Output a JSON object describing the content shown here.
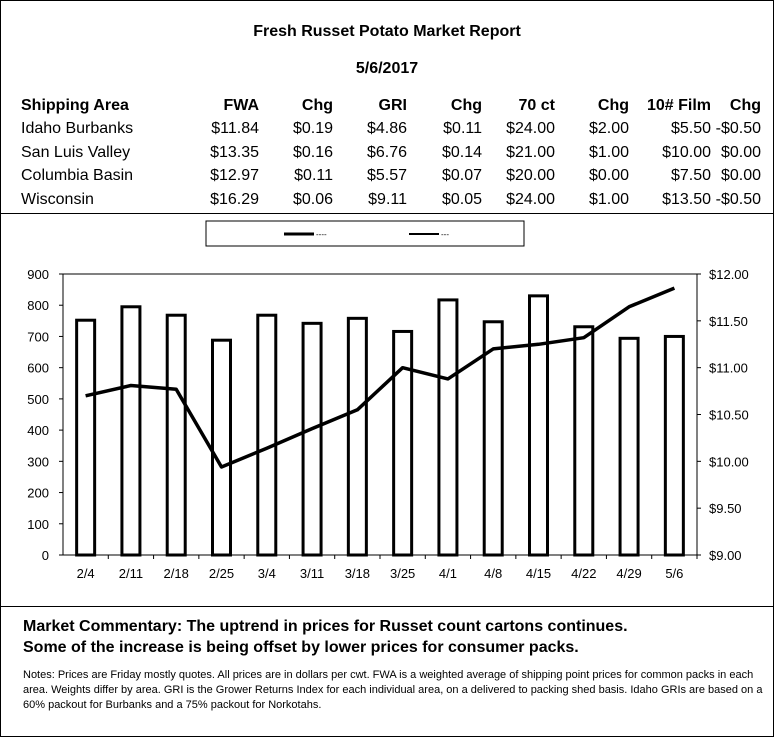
{
  "report": {
    "title": "Fresh Russet Potato Market Report",
    "date": "5/6/2017"
  },
  "table": {
    "headers": [
      "Shipping Area",
      "FWA",
      "Chg",
      "GRI",
      "Chg",
      "70 ct",
      "Chg",
      "10# Film",
      "Chg"
    ],
    "rows": [
      [
        "Idaho Burbanks",
        "$11.84",
        "$0.19",
        "$4.86",
        "$0.11",
        "$24.00",
        "$2.00",
        "$5.50",
        "-$0.50"
      ],
      [
        "San Luis Valley",
        "$13.35",
        "$0.16",
        "$6.76",
        "$0.14",
        "$21.00",
        "$1.00",
        "$10.00",
        "$0.00"
      ],
      [
        "Columbia Basin",
        "$12.97",
        "$0.11",
        "$5.57",
        "$0.07",
        "$20.00",
        "$0.00",
        "$7.50",
        "$0.00"
      ],
      [
        "Wisconsin",
        "$16.29",
        "$0.06",
        "$9.11",
        "$0.05",
        "$24.00",
        "$1.00",
        "$13.50",
        "-$0.50"
      ]
    ]
  },
  "chart_data": {
    "type": "bar",
    "categories": [
      "2/4",
      "2/11",
      "2/18",
      "2/25",
      "3/4",
      "3/11",
      "3/18",
      "3/25",
      "4/1",
      "4/8",
      "4/15",
      "4/22",
      "4/29",
      "5/6"
    ],
    "series": [
      {
        "type": "bar",
        "axis": "left",
        "values": [
          752,
          795,
          768,
          688,
          768,
          742,
          758,
          716,
          817,
          747,
          830,
          731,
          694,
          700
        ]
      },
      {
        "type": "line",
        "axis": "right",
        "values": [
          10.7,
          10.81,
          10.77,
          9.94,
          10.14,
          10.35,
          10.55,
          11.0,
          10.88,
          11.2,
          11.25,
          11.32,
          11.65,
          11.85
        ]
      }
    ],
    "legend": {
      "placement": "top",
      "entries": [
        "----",
        "---"
      ]
    },
    "y_left": {
      "lim": [
        0,
        900
      ],
      "ticks": [
        "900",
        "800",
        "700",
        "600",
        "500",
        "400",
        "300",
        "200",
        "100",
        "0"
      ]
    },
    "y_right": {
      "lim": [
        9,
        12
      ],
      "ticks": [
        "$12.00",
        "$11.50",
        "$11.00",
        "$10.50",
        "$10.00",
        "$9.50",
        "$9.00"
      ]
    },
    "grid": false
  },
  "commentary": {
    "line1": "Market Commentary: The uptrend in prices for Russet count cartons continues.",
    "line2": "Some of the increase is being offset by lower prices for consumer packs."
  },
  "notes": "Notes: Prices are Friday mostly quotes. All prices are in dollars per cwt. FWA is a weighted average of shipping point prices for  common packs in each area. Weights differ by area. GRI is the Grower Returns Index for each individual area, on a delivered to packing shed basis. Idaho GRIs are based on a 60% packout for Burbanks and a 75% packout for Norkotahs."
}
